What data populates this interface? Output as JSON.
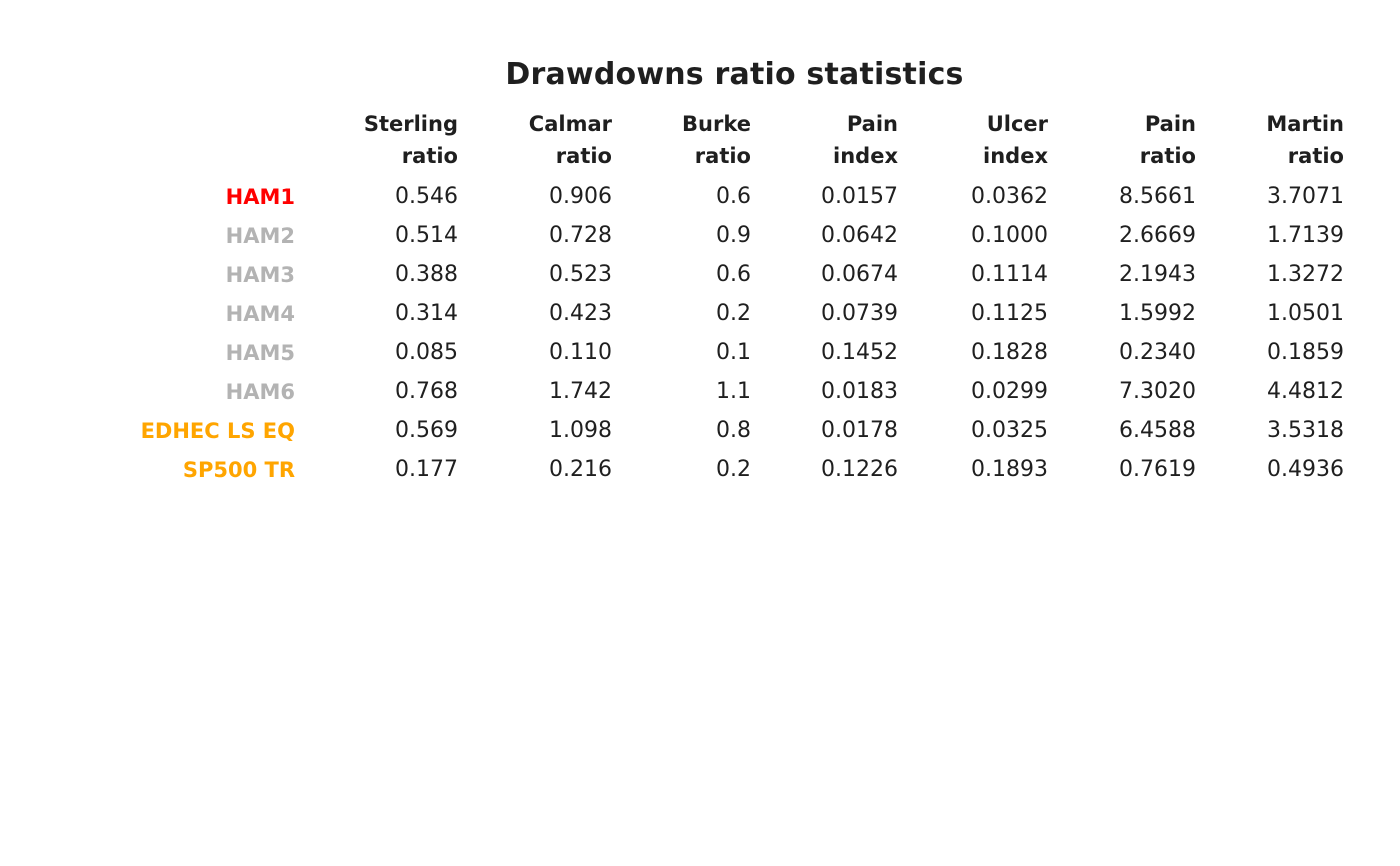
{
  "title": "Drawdowns ratio statistics",
  "colors": {
    "background": "#ffffff",
    "text": "#1f1f1f",
    "highlight_red": "#ff0000",
    "muted_gray": "#b3b3b3",
    "benchmark_orange": "#ffa500"
  },
  "chart_data": {
    "type": "table",
    "title": "Drawdowns ratio statistics",
    "columns": [
      [
        "Sterling",
        "ratio"
      ],
      [
        "Calmar",
        "ratio"
      ],
      [
        "Burke",
        "ratio"
      ],
      [
        "Pain",
        "index"
      ],
      [
        "Ulcer",
        "index"
      ],
      [
        "Pain",
        "ratio"
      ],
      [
        "Martin",
        "ratio"
      ]
    ],
    "rows": [
      {
        "label": "HAM1",
        "color": "#ff0000",
        "values": [
          "0.546",
          "0.906",
          "0.6",
          "0.0157",
          "0.0362",
          "8.5661",
          "3.7071"
        ]
      },
      {
        "label": "HAM2",
        "color": "#b3b3b3",
        "values": [
          "0.514",
          "0.728",
          "0.9",
          "0.0642",
          "0.1000",
          "2.6669",
          "1.7139"
        ]
      },
      {
        "label": "HAM3",
        "color": "#b3b3b3",
        "values": [
          "0.388",
          "0.523",
          "0.6",
          "0.0674",
          "0.1114",
          "2.1943",
          "1.3272"
        ]
      },
      {
        "label": "HAM4",
        "color": "#b3b3b3",
        "values": [
          "0.314",
          "0.423",
          "0.2",
          "0.0739",
          "0.1125",
          "1.5992",
          "1.0501"
        ]
      },
      {
        "label": "HAM5",
        "color": "#b3b3b3",
        "values": [
          "0.085",
          "0.110",
          "0.1",
          "0.1452",
          "0.1828",
          "0.2340",
          "0.1859"
        ]
      },
      {
        "label": "HAM6",
        "color": "#b3b3b3",
        "values": [
          "0.768",
          "1.742",
          "1.1",
          "0.0183",
          "0.0299",
          "7.3020",
          "4.4812"
        ]
      },
      {
        "label": "EDHEC LS EQ",
        "color": "#ffa500",
        "values": [
          "0.569",
          "1.098",
          "0.8",
          "0.0178",
          "0.0325",
          "6.4588",
          "3.5318"
        ]
      },
      {
        "label": "SP500 TR",
        "color": "#ffa500",
        "values": [
          "0.177",
          "0.216",
          "0.2",
          "0.1226",
          "0.1893",
          "0.7619",
          "0.4936"
        ]
      }
    ]
  }
}
